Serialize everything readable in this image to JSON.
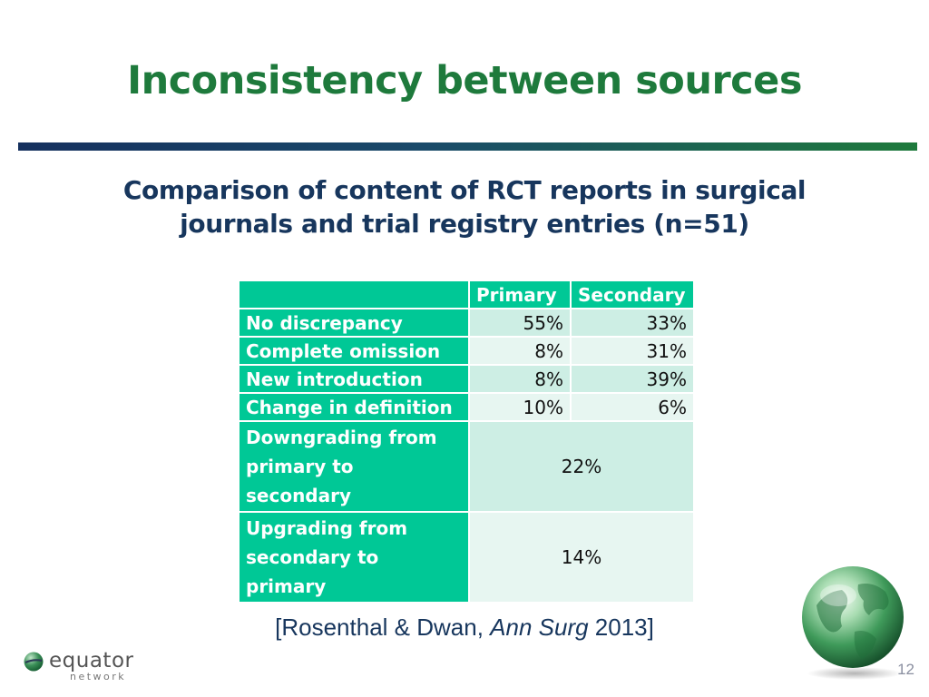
{
  "slide": {
    "title": "Inconsistency between sources",
    "subtitle_line1": "Comparison of content of RCT reports in surgical",
    "subtitle_line2": "journals and trial registry entries (n=51)",
    "page_number": "12"
  },
  "table": {
    "headers": [
      "",
      "Primary",
      "Secondary"
    ],
    "rows": [
      {
        "label": "No discrepancy",
        "primary": "55%",
        "secondary": "33%"
      },
      {
        "label": "Complete omission",
        "primary": "8%",
        "secondary": "31%"
      },
      {
        "label": "New introduction",
        "primary": "8%",
        "secondary": "39%"
      },
      {
        "label": "Change in definition",
        "primary": "10%",
        "secondary": "6%"
      }
    ],
    "merged_rows": [
      {
        "label_line1": "Downgrading from",
        "label_line2": "primary to secondary",
        "value": "22%"
      },
      {
        "label_line1": "Upgrading from",
        "label_line2": "secondary to primary",
        "value": "14%"
      }
    ]
  },
  "citation": {
    "prefix": "[Rosenthal & Dwan, ",
    "journal": "Ann Surg",
    "suffix": " 2013]"
  },
  "logo": {
    "word": "equator",
    "sub": "network"
  },
  "colors": {
    "title": "#1e7a3c",
    "subtitle": "#17365d",
    "table_header": "#00c896",
    "cell_shade": "#cdeee4",
    "cell_light": "#e7f6f1"
  },
  "icons": {
    "globe": "globe-icon",
    "logo_mark": "equator-globe-icon"
  }
}
